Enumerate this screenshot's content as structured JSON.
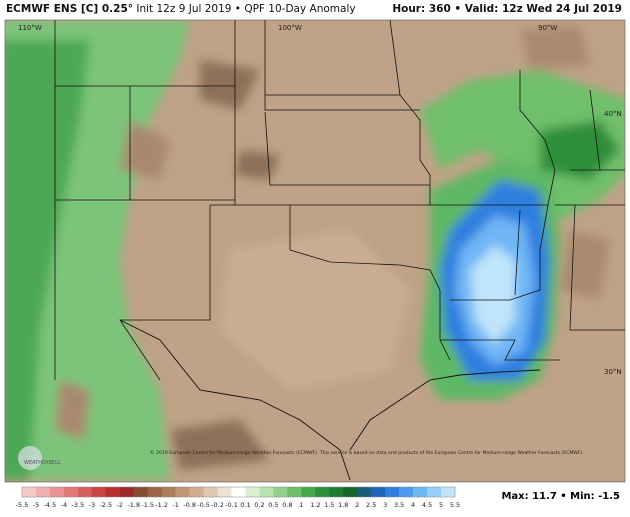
{
  "header": {
    "model": "ECMWF ENS [C] 0.25°",
    "info": "Init 12z 9 Jul 2019 • QPF 10-Day Anomaly",
    "valid": "Hour: 360 • Valid: 12z Wed 24 Jul 2019"
  },
  "map": {
    "lon_labels": [
      "110°W",
      "100°W",
      "90°W"
    ],
    "lat_labels": [
      "40°N",
      "30°N"
    ],
    "logo": "WEATHERBELL",
    "copyright": "© 2019 European Centre for Medium-range Weather Forecasts (ECMWF). This service is based on data and products of the European Centre for Medium-range Weather Forecasts (ECMWF)."
  },
  "colorbar": {
    "labels": [
      -5.5,
      -5,
      -4.5,
      -4,
      -3.5,
      -3,
      -2.5,
      -2,
      -1.8,
      -1.5,
      -1.2,
      -1,
      -0.8,
      -0.5,
      -0.2,
      -0.1,
      0.1,
      0.2,
      0.5,
      0.8,
      1,
      1.2,
      1.5,
      1.8,
      2,
      2.5,
      3,
      3.5,
      4,
      4.5,
      5,
      5.5
    ],
    "colors": [
      "#f6c9c9",
      "#f0b0b0",
      "#e89494",
      "#e07a7a",
      "#d65f5f",
      "#c94545",
      "#b83030",
      "#9c2a2a",
      "#8a4a32",
      "#9b6444",
      "#ad7d5c",
      "#bf9676",
      "#cfae92",
      "#dec6b0",
      "#ede0d4",
      "#ffffff",
      "#d9f0d3",
      "#b8e3b0",
      "#93d18a",
      "#6cbf66",
      "#45a848",
      "#2d8f3a",
      "#1f7a34",
      "#16662d",
      "#1b5e7a",
      "#2165b8",
      "#2f7fe0",
      "#4c9bef",
      "#6fb6f5",
      "#96cff9",
      "#bfe4fc"
    ]
  },
  "stats": "Max: 11.7 • Min: -1.5"
}
